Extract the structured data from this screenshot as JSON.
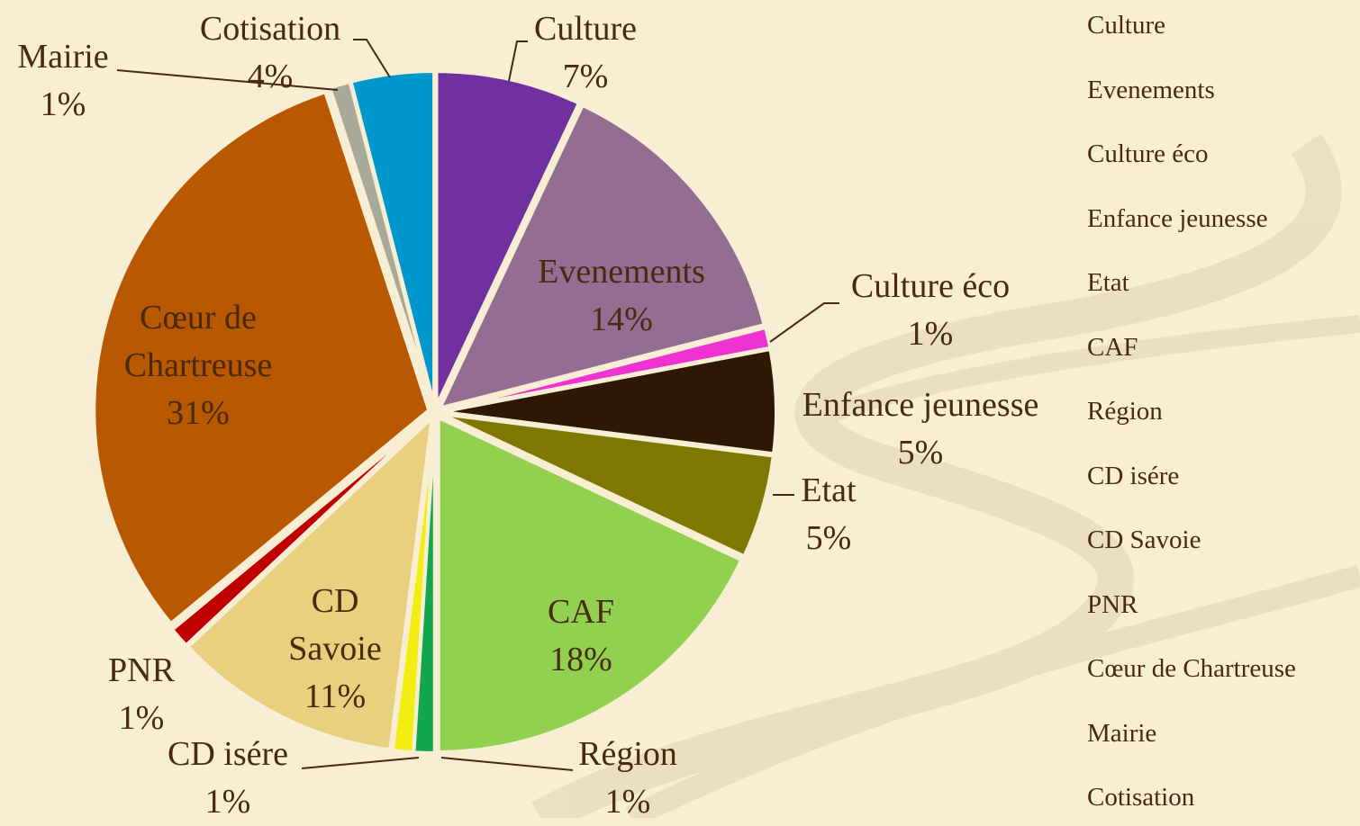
{
  "chart_data": {
    "type": "pie",
    "categories": [
      "Culture",
      "Evenements",
      "Culture éco",
      "Enfance jeunesse",
      "Etat",
      "CAF",
      "Région",
      "CD isére",
      "CD Savoie",
      "PNR",
      "Cœur de Chartreuse",
      "Mairie",
      "Cotisation"
    ],
    "values": [
      7,
      14,
      1,
      5,
      5,
      18,
      1,
      1,
      11,
      1,
      31,
      1,
      4
    ],
    "value_labels": [
      "7%",
      "14%",
      "1%",
      "5%",
      "5%",
      "18%",
      "1%",
      "1%",
      "11%",
      "1%",
      "31%",
      "1%",
      "4%"
    ],
    "colors": [
      "#7030a0",
      "#946d93",
      "#f032d2",
      "#2e1804",
      "#7f7800",
      "#92d050",
      "#12a650",
      "#f2ee12",
      "#e8d07e",
      "#c00000",
      "#b85800",
      "#a9a99a",
      "#0098cc"
    ],
    "legend": "right"
  }
}
